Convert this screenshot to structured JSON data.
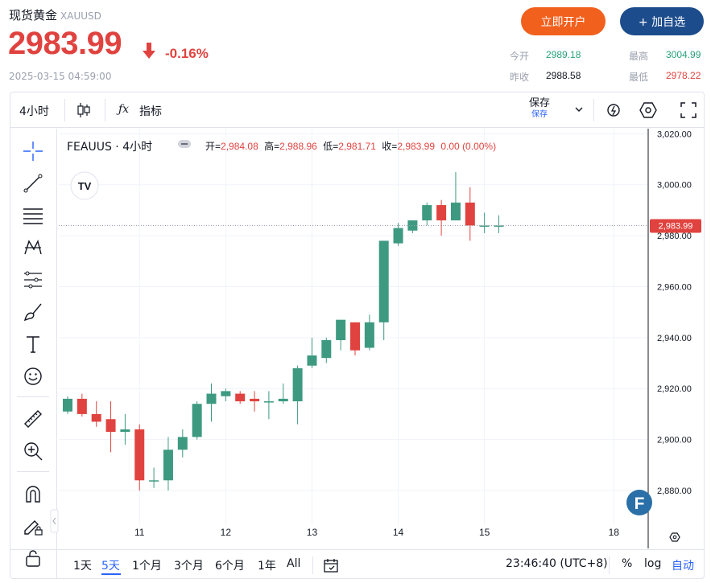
{
  "header": {
    "title": "现货黄金",
    "symbol": "XAUUSD",
    "price": "2983.99",
    "change_pct": "-0.16%",
    "timestamp": "2025-03-15 04:59:00",
    "open_account_label": "立即开户",
    "add_watchlist_label": "+ 加自选",
    "stats": {
      "today_open_label": "今开",
      "today_open": "2989.18",
      "high_label": "最高",
      "high": "3004.99",
      "prev_close_label": "昨收",
      "prev_close": "2988.58",
      "low_label": "最低",
      "low": "2978.22"
    },
    "colors": {
      "down": "#e0433f",
      "up": "#26a17b",
      "orange": "#f2601d",
      "navy": "#1d4c8c"
    }
  },
  "toolbar": {
    "interval_label": "4小时",
    "indicators_label": "指标",
    "save_label": "保存",
    "save_sub_label": "保存"
  },
  "chart_info": {
    "name": "FEAUUS · 4小时",
    "open_label": "开",
    "open": "2,984.08",
    "high_label": "高",
    "high": "2,988.96",
    "low_label": "低",
    "low": "2,981.71",
    "close_label": "收",
    "close": "2,983.99",
    "change": "0.00 (0.00%)"
  },
  "bottom": {
    "ranges": [
      "1天",
      "5天",
      "1个月",
      "3个月",
      "6个月",
      "1年",
      "All"
    ],
    "selected_range": "5天",
    "clock": "23:46:40 (UTC+8)",
    "pct_label": "%",
    "log_label": "log",
    "auto_label": "自动"
  },
  "chart_data": {
    "type": "candlestick",
    "ylim": [
      2868,
      3022
    ],
    "y_ticks": [
      "2,880.00",
      "2,900.00",
      "2,920.00",
      "2,940.00",
      "2,960.00",
      "2,980.00",
      "3,000.00",
      "3,020.00"
    ],
    "y_tick_values": [
      2880,
      2900,
      2920,
      2940,
      2960,
      2980,
      3000,
      3020
    ],
    "x_ticks": [
      "11",
      "12",
      "13",
      "14",
      "15",
      "18"
    ],
    "x_tick_index": [
      5,
      11,
      17,
      23,
      29,
      38
    ],
    "last_price_label": "2,983.99",
    "last_price": 2983.99,
    "candles": [
      {
        "o": 2911,
        "h": 2917,
        "l": 2910,
        "c": 2916
      },
      {
        "o": 2916,
        "h": 2918,
        "l": 2909,
        "c": 2910
      },
      {
        "o": 2910,
        "h": 2915,
        "l": 2905,
        "c": 2907
      },
      {
        "o": 2908,
        "h": 2915,
        "l": 2895,
        "c": 2903
      },
      {
        "o": 2903,
        "h": 2910,
        "l": 2898,
        "c": 2904
      },
      {
        "o": 2904,
        "h": 2906,
        "l": 2880,
        "c": 2884
      },
      {
        "o": 2884,
        "h": 2889,
        "l": 2881,
        "c": 2884
      },
      {
        "o": 2884,
        "h": 2901,
        "l": 2880,
        "c": 2896
      },
      {
        "o": 2896,
        "h": 2904,
        "l": 2893,
        "c": 2901
      },
      {
        "o": 2901,
        "h": 2915,
        "l": 2900,
        "c": 2914
      },
      {
        "o": 2914,
        "h": 2922,
        "l": 2907,
        "c": 2918
      },
      {
        "o": 2917,
        "h": 2920,
        "l": 2915,
        "c": 2919
      },
      {
        "o": 2918,
        "h": 2919,
        "l": 2914,
        "c": 2915
      },
      {
        "o": 2916,
        "h": 2919,
        "l": 2911,
        "c": 2915
      },
      {
        "o": 2915,
        "h": 2919,
        "l": 2908,
        "c": 2915
      },
      {
        "o": 2915,
        "h": 2922,
        "l": 2914,
        "c": 2916
      },
      {
        "o": 2915,
        "h": 2929,
        "l": 2906,
        "c": 2928
      },
      {
        "o": 2929,
        "h": 2940,
        "l": 2928,
        "c": 2933
      },
      {
        "o": 2932,
        "h": 2940,
        "l": 2930,
        "c": 2939
      },
      {
        "o": 2939,
        "h": 2947,
        "l": 2935,
        "c": 2947
      },
      {
        "o": 2946,
        "h": 2946,
        "l": 2933,
        "c": 2935
      },
      {
        "o": 2936,
        "h": 2949,
        "l": 2935,
        "c": 2946
      },
      {
        "o": 2946,
        "h": 2978,
        "l": 2939,
        "c": 2978
      },
      {
        "o": 2977,
        "h": 2985,
        "l": 2976,
        "c": 2983
      },
      {
        "o": 2982,
        "h": 2986,
        "l": 2981,
        "c": 2986
      },
      {
        "o": 2986,
        "h": 2993,
        "l": 2984,
        "c": 2992
      },
      {
        "o": 2992,
        "h": 2994,
        "l": 2980,
        "c": 2986
      },
      {
        "o": 2986,
        "h": 3005,
        "l": 2986,
        "c": 2993
      },
      {
        "o": 2993,
        "h": 2999,
        "l": 2978,
        "c": 2984
      },
      {
        "o": 2984,
        "h": 2989,
        "l": 2981,
        "c": 2984
      },
      {
        "o": 2984,
        "h": 2988,
        "l": 2981,
        "c": 2984
      }
    ]
  }
}
